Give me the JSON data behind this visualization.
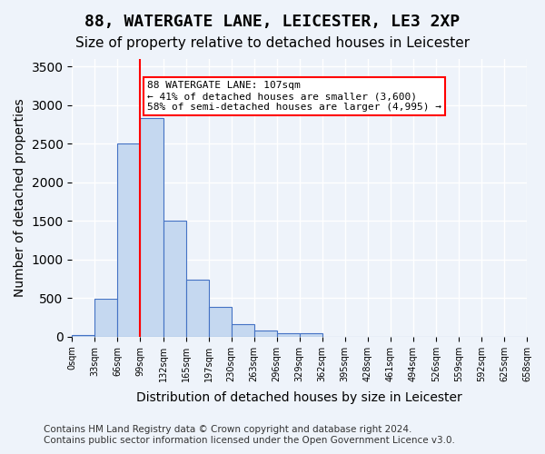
{
  "title1": "88, WATERGATE LANE, LEICESTER, LE3 2XP",
  "title2": "Size of property relative to detached houses in Leicester",
  "xlabel": "Distribution of detached houses by size in Leicester",
  "ylabel": "Number of detached properties",
  "footnote": "Contains HM Land Registry data © Crown copyright and database right 2024.\nContains public sector information licensed under the Open Government Licence v3.0.",
  "bin_labels": [
    "0sqm",
    "33sqm",
    "66sqm",
    "99sqm",
    "132sqm",
    "165sqm",
    "197sqm",
    "230sqm",
    "263sqm",
    "296sqm",
    "329sqm",
    "362sqm",
    "395sqm",
    "428sqm",
    "461sqm",
    "494sqm",
    "526sqm",
    "559sqm",
    "592sqm",
    "625sqm",
    "658sqm"
  ],
  "bar_values": [
    25,
    490,
    2510,
    2830,
    1510,
    740,
    390,
    160,
    75,
    45,
    45,
    0,
    0,
    0,
    0,
    0,
    0,
    0,
    0,
    0
  ],
  "bar_color": "#c5d8f0",
  "bar_edge_color": "#4472c4",
  "property_line_x": 3,
  "property_sqm": 107,
  "annotation_text": "88 WATERGATE LANE: 107sqm\n← 41% of detached houses are smaller (3,600)\n58% of semi-detached houses are larger (4,995) →",
  "annotation_box_color": "white",
  "annotation_box_edge": "red",
  "vline_color": "red",
  "ylim": [
    0,
    3600
  ],
  "background_color": "#eef3fa",
  "grid_color": "white",
  "title1_fontsize": 13,
  "title2_fontsize": 11,
  "xlabel_fontsize": 10,
  "ylabel_fontsize": 10,
  "footnote_fontsize": 7.5
}
